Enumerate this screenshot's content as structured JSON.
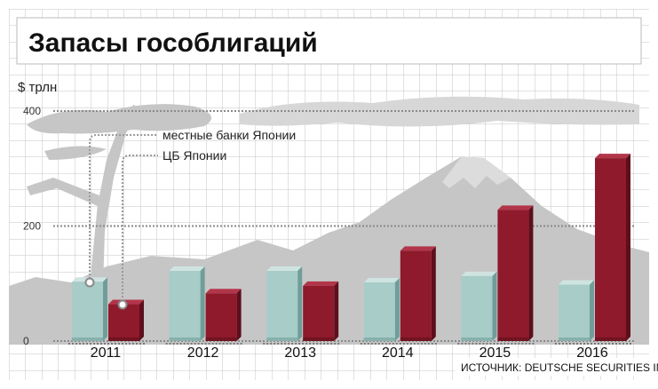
{
  "colors": {
    "local_banks": "#a8ccc8",
    "local_banks_side": "#6f9e9a",
    "local_banks_top": "#cfe4e1",
    "boj": "#8e1a2b",
    "boj_side": "#5d0f1b",
    "boj_top": "#b2354a",
    "grid": "#c6c6c6",
    "gridline": "#8a8a8a",
    "silhouette": "#c4c4c4"
  },
  "chart_data": {
    "type": "bar",
    "title": "Запасы гособлигаций",
    "ylabel": "$ трлн",
    "xlabel": "",
    "ylim": [
      0,
      400
    ],
    "yticks": [
      0,
      200,
      400
    ],
    "grid": true,
    "legend_position": "top-left",
    "categories": [
      "2011",
      "2012",
      "2013",
      "2014",
      "2015",
      "2016"
    ],
    "series": [
      {
        "name": "местные банки Японии",
        "values": [
          103,
          122,
          122,
          102,
          113,
          98
        ]
      },
      {
        "name": "ЦБ Японии",
        "values": [
          64,
          83,
          96,
          157,
          228,
          318
        ]
      }
    ],
    "source": "ИСТОЧНИК: DEUTSCHE SECURITIES INC."
  }
}
